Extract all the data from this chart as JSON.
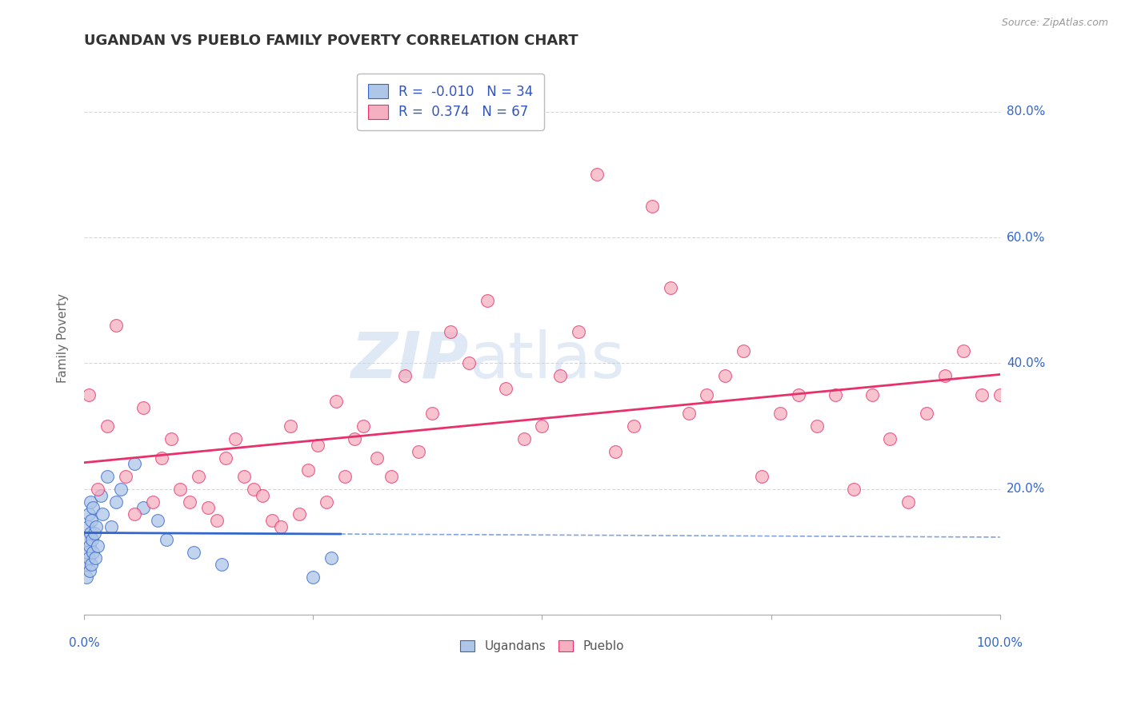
{
  "title": "UGANDAN VS PUEBLO FAMILY POVERTY CORRELATION CHART",
  "source": "Source: ZipAtlas.com",
  "ylabel": "Family Poverty",
  "ugandan_R": -0.01,
  "ugandan_N": 34,
  "pueblo_R": 0.374,
  "pueblo_N": 67,
  "ugandan_color": "#aec6e8",
  "pueblo_color": "#f4afc0",
  "ugandan_line_color": "#3366cc",
  "pueblo_line_color": "#e8306a",
  "background_color": "#ffffff",
  "grid_color": "#cccccc",
  "title_color": "#333333",
  "legend_text_color": "#3355bb",
  "ytick_color": "#3366cc",
  "watermark_zip": "ZIP",
  "watermark_atlas": "atlas",
  "ugandan_x": [
    0.002,
    0.003,
    0.003,
    0.004,
    0.004,
    0.005,
    0.005,
    0.006,
    0.006,
    0.007,
    0.007,
    0.008,
    0.008,
    0.009,
    0.01,
    0.01,
    0.011,
    0.012,
    0.013,
    0.015,
    0.018,
    0.02,
    0.025,
    0.03,
    0.035,
    0.04,
    0.055,
    0.065,
    0.08,
    0.09,
    0.12,
    0.15,
    0.25,
    0.27
  ],
  "ugandan_y": [
    0.08,
    0.12,
    0.06,
    0.1,
    0.14,
    0.09,
    0.16,
    0.11,
    0.07,
    0.13,
    0.18,
    0.08,
    0.15,
    0.12,
    0.1,
    0.17,
    0.13,
    0.09,
    0.14,
    0.11,
    0.19,
    0.16,
    0.22,
    0.14,
    0.18,
    0.2,
    0.24,
    0.17,
    0.15,
    0.12,
    0.1,
    0.08,
    0.06,
    0.09
  ],
  "pueblo_x": [
    0.005,
    0.015,
    0.025,
    0.035,
    0.045,
    0.055,
    0.065,
    0.075,
    0.085,
    0.095,
    0.105,
    0.115,
    0.125,
    0.135,
    0.145,
    0.155,
    0.165,
    0.175,
    0.185,
    0.195,
    0.205,
    0.215,
    0.225,
    0.235,
    0.245,
    0.255,
    0.265,
    0.275,
    0.285,
    0.295,
    0.305,
    0.32,
    0.335,
    0.35,
    0.365,
    0.38,
    0.4,
    0.42,
    0.44,
    0.46,
    0.48,
    0.5,
    0.52,
    0.54,
    0.56,
    0.58,
    0.6,
    0.62,
    0.64,
    0.66,
    0.68,
    0.7,
    0.72,
    0.74,
    0.76,
    0.78,
    0.8,
    0.82,
    0.84,
    0.86,
    0.88,
    0.9,
    0.92,
    0.94,
    0.96,
    0.98,
    1.0
  ],
  "pueblo_y": [
    0.35,
    0.2,
    0.3,
    0.46,
    0.22,
    0.16,
    0.33,
    0.18,
    0.25,
    0.28,
    0.2,
    0.18,
    0.22,
    0.17,
    0.15,
    0.25,
    0.28,
    0.22,
    0.2,
    0.19,
    0.15,
    0.14,
    0.3,
    0.16,
    0.23,
    0.27,
    0.18,
    0.34,
    0.22,
    0.28,
    0.3,
    0.25,
    0.22,
    0.38,
    0.26,
    0.32,
    0.45,
    0.4,
    0.5,
    0.36,
    0.28,
    0.3,
    0.38,
    0.45,
    0.7,
    0.26,
    0.3,
    0.65,
    0.52,
    0.32,
    0.35,
    0.38,
    0.42,
    0.22,
    0.32,
    0.35,
    0.3,
    0.35,
    0.2,
    0.35,
    0.28,
    0.18,
    0.32,
    0.38,
    0.42,
    0.35,
    0.35
  ],
  "xlim": [
    0,
    1.0
  ],
  "ylim": [
    0,
    0.88
  ],
  "yticks": [
    0.0,
    0.2,
    0.4,
    0.6,
    0.8
  ]
}
